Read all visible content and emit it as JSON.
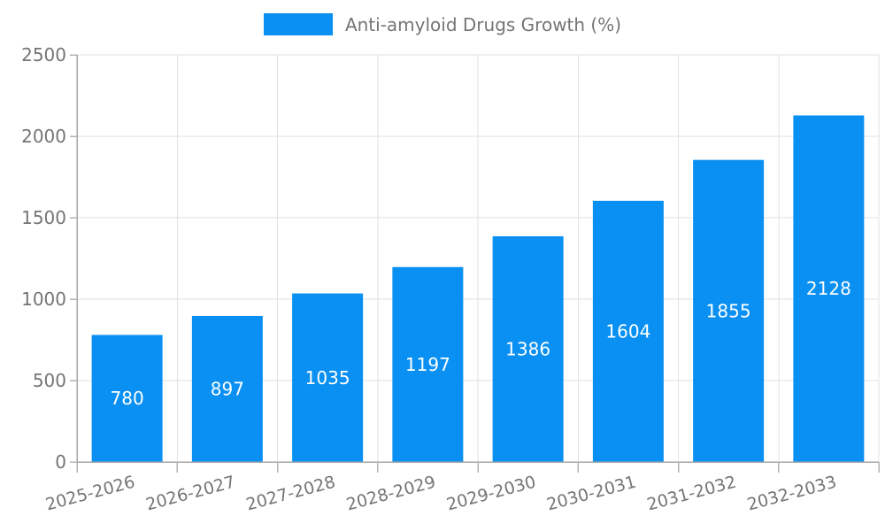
{
  "chart_data": {
    "type": "bar",
    "title": "",
    "legend": {
      "label": "Anti-amyloid Drugs Growth (%)",
      "position": "top"
    },
    "categories": [
      "2025-2026",
      "2026-2027",
      "2027-2028",
      "2028-2029",
      "2029-2030",
      "2030-2031",
      "2031-2032",
      "2032-2033"
    ],
    "series": [
      {
        "name": "Anti-amyloid Drugs Growth (%)",
        "values": [
          780,
          897,
          1035,
          1197,
          1386,
          1604,
          1855,
          2128
        ]
      }
    ],
    "value_labels": [
      "780",
      "897",
      "1035",
      "1197",
      "1386",
      "1604",
      "1855",
      "2128"
    ],
    "ylim": [
      0,
      2500
    ],
    "yticks": [
      0,
      500,
      1000,
      1500,
      2000,
      2500
    ],
    "ytick_labels": [
      "0",
      "500",
      "1000",
      "1500",
      "2000",
      "2500"
    ],
    "grid": true,
    "x_label_rotation_deg": -15,
    "colors": {
      "bar": "#0990f2",
      "value_label": "#ffffff",
      "grid_line": "#e2e2e2",
      "axis_line": "#a6a6a6",
      "tick_mark": "#b3b3b3",
      "axis_text": "#757575"
    }
  }
}
